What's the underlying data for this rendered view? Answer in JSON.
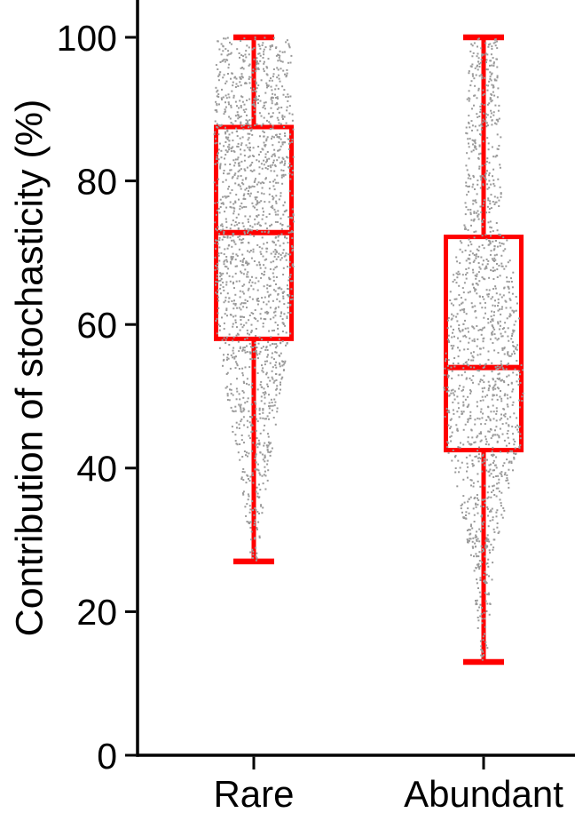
{
  "chart_data": {
    "type": "box",
    "title": "",
    "ylabel": "Contribution of stochasticity (%)",
    "xlabel": "",
    "ylim": [
      0,
      100
    ],
    "yticks": [
      0,
      20,
      40,
      60,
      80,
      100
    ],
    "categories": [
      "Rare",
      "Abundant"
    ],
    "grid": false,
    "legend": null,
    "colors": {
      "box": "#ff0000",
      "points": "#9a9a9a",
      "axis": "#000000",
      "text": "#000000",
      "background": "#ffffff"
    },
    "series": [
      {
        "name": "Rare",
        "whisker_low": 27,
        "q1": 58,
        "median": 72.8,
        "q3": 87.5,
        "whisker_high": 100,
        "n_points": 1700,
        "violin_profile": [
          [
            27,
            4
          ],
          [
            30,
            7
          ],
          [
            35,
            12
          ],
          [
            40,
            18
          ],
          [
            45,
            24
          ],
          [
            50,
            30
          ],
          [
            55,
            36
          ],
          [
            58,
            41
          ],
          [
            60,
            43
          ],
          [
            65,
            44
          ],
          [
            70,
            45
          ],
          [
            75,
            45
          ],
          [
            80,
            45
          ],
          [
            85,
            45
          ],
          [
            90,
            44
          ],
          [
            95,
            43
          ],
          [
            100,
            42
          ]
        ]
      },
      {
        "name": "Abundant",
        "whisker_low": 13,
        "q1": 42.5,
        "median": 54,
        "q3": 72.2,
        "whisker_high": 100,
        "n_points": 1400,
        "violin_profile": [
          [
            13,
            3
          ],
          [
            16,
            5
          ],
          [
            20,
            8
          ],
          [
            24,
            12
          ],
          [
            28,
            16
          ],
          [
            32,
            21
          ],
          [
            36,
            28
          ],
          [
            40,
            35
          ],
          [
            43,
            42
          ],
          [
            46,
            44
          ],
          [
            50,
            45
          ],
          [
            54,
            44
          ],
          [
            58,
            43
          ],
          [
            62,
            40
          ],
          [
            66,
            36
          ],
          [
            70,
            30
          ],
          [
            72,
            26
          ],
          [
            74,
            22
          ],
          [
            78,
            20
          ],
          [
            82,
            20
          ],
          [
            86,
            20
          ],
          [
            90,
            19
          ],
          [
            94,
            18
          ],
          [
            100,
            15
          ]
        ]
      }
    ]
  }
}
